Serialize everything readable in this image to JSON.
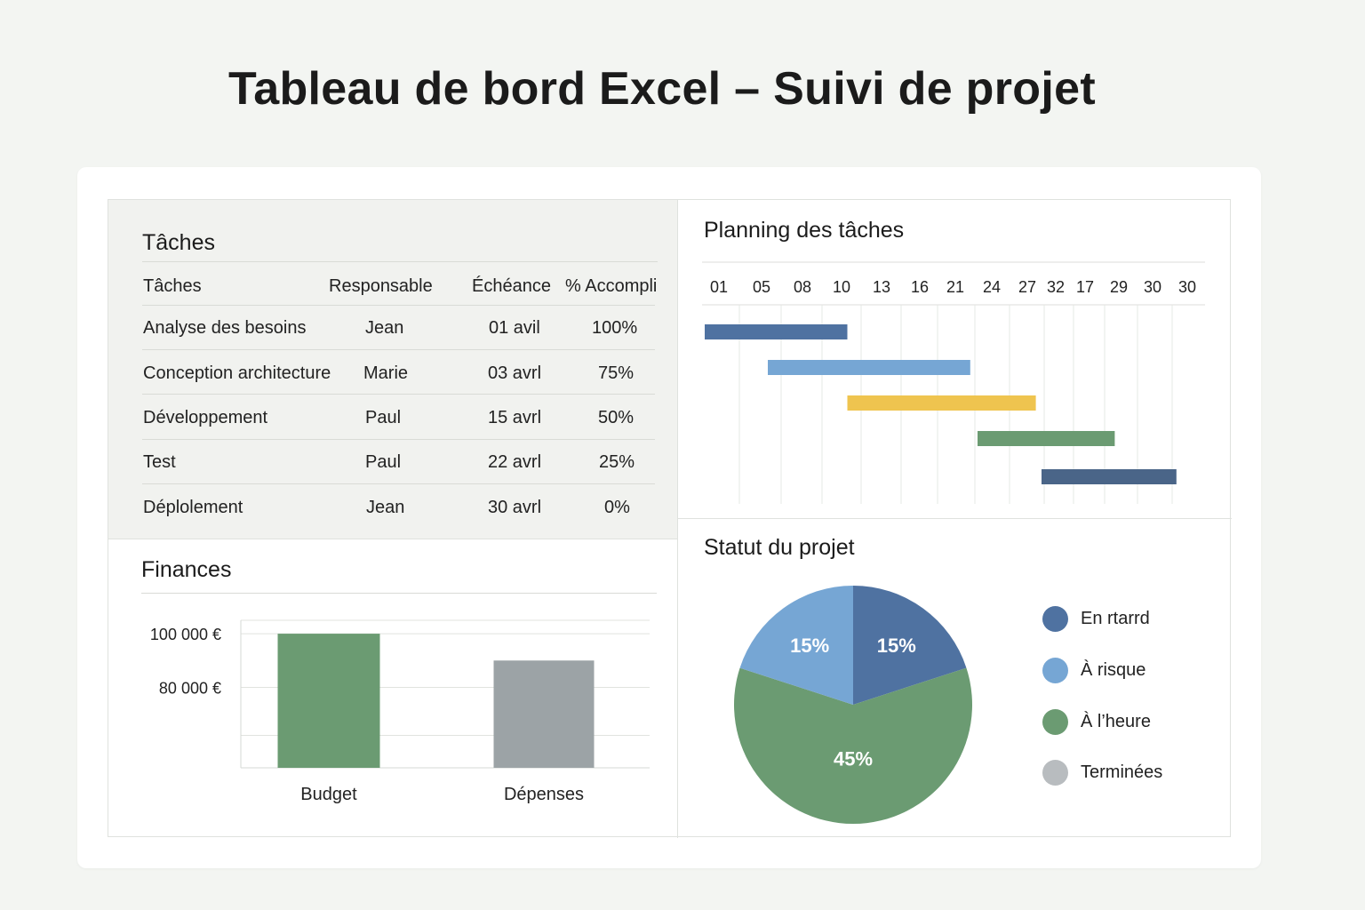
{
  "page": {
    "title": "Tableau de bord Excel – Suivi de projet"
  },
  "tasks": {
    "title": "Tâches",
    "headers": {
      "task": "Tâches",
      "owner": "Responsable",
      "due": "Échéance",
      "pct": "% Accompli"
    },
    "rows": [
      {
        "task": "Analyse des besoins",
        "owner": "Jean",
        "due": "01 avil",
        "pct": "100%"
      },
      {
        "task": "Conception architecture",
        "owner": "Marie",
        "due": "03 avrl",
        "pct": "75%"
      },
      {
        "task": "Développement",
        "owner": "Paul",
        "due": "15 avrl",
        "pct": "50%"
      },
      {
        "task": "Test",
        "owner": "Paul",
        "due": "22 avrl",
        "pct": "25%"
      },
      {
        "task": "Déplolement",
        "owner": "Jean",
        "due": "30 avrl",
        "pct": "0%"
      }
    ]
  },
  "finances": {
    "title": "Finances"
  },
  "planning": {
    "title": "Planning des tâches"
  },
  "status": {
    "title": "Statut du projet"
  },
  "colors": {
    "dark_blue": "#4f72a1",
    "light_blue": "#76a6d4",
    "green": "#6b9b72",
    "gray": "#9ca3a6",
    "yellow": "#efc44f",
    "navy": "#4a6588",
    "legend_gray": "#b8bcbf"
  },
  "chart_data": [
    {
      "type": "bar",
      "categories": [
        "Budget",
        "Dépenses"
      ],
      "values": [
        100000,
        90000
      ],
      "colors": [
        "#6b9b72",
        "#9ca3a6"
      ],
      "ytick_values": [
        80000,
        100000
      ],
      "ytick_labels": [
        "80 000 €",
        "100 000 €"
      ],
      "ylim": [
        50000,
        105000
      ],
      "grid": true
    },
    {
      "type": "gantt",
      "ticks": [
        "01",
        "05",
        "08",
        "10",
        "13",
        "16",
        "21",
        "24",
        "27",
        "32",
        "17",
        "29",
        "30",
        "30"
      ],
      "series": [
        {
          "start_tick": 0,
          "end_tick": 3.5,
          "color": "#4f72a1"
        },
        {
          "start_tick": 1.5,
          "end_tick": 6.8,
          "color": "#76a6d4"
        },
        {
          "start_tick": 3.5,
          "end_tick": 8.8,
          "color": "#efc44f"
        },
        {
          "start_tick": 7,
          "end_tick": 11.3,
          "color": "#6b9b72"
        },
        {
          "start_tick": 9,
          "end_tick": 13.1,
          "color": "#4a6588"
        }
      ],
      "grid": true
    },
    {
      "type": "pie",
      "slices": [
        {
          "label": "En rtarrd",
          "value": 15,
          "display": "15%",
          "color": "#4f72a1"
        },
        {
          "label": "À l'heure",
          "value": 45,
          "display": "45%",
          "color": "#6b9b72"
        },
        {
          "label": "À risque",
          "value": 15,
          "display": "15%",
          "color": "#76a6d4"
        }
      ],
      "legend": [
        {
          "label": "En rtarrd",
          "color": "#4f72a1"
        },
        {
          "label": "À risque",
          "color": "#76a6d4"
        },
        {
          "label": "À l’heure",
          "color": "#6b9b72"
        },
        {
          "label": "Terminées",
          "color": "#b8bcbf"
        }
      ],
      "legend_position": "right"
    }
  ]
}
